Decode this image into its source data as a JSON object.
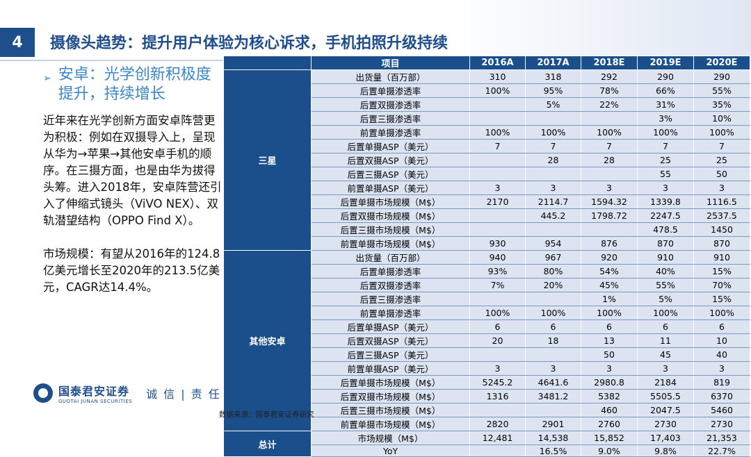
{
  "slide_number": "4",
  "title": "摄像头趋势：提升用户体验为核心诉求，手机拍照升级持续",
  "subheading": "安卓：光学创新积极度提升，持续增长",
  "paragraph1": "近年来在光学创新方面安卓阵营更为积极：例如在双摄导入上，呈现从华为→苹果→其他安卓手机的顺序。在三摄方面，也是由华为拔得头筹。进入2018年，安卓阵营还引入了伸缩式镜头（ViVO NEX）、双轨潜望结构（OPPO Find X）。",
  "paragraph2": "市场规模：有望从2016年的124.8亿美元增长至2020年的213.5亿美元，CAGR达14.4%。",
  "company_cn": "国泰君安证券",
  "company_en": "GUOTAI JUNAN SECURITIES",
  "motto": "诚 信 | 责 任 | 亲",
  "source": "数据来源：国泰君安证券研究",
  "table": {
    "headers": [
      "项目",
      "2016A",
      "2017A",
      "2018E",
      "2019E",
      "2020E"
    ],
    "groups": [
      {
        "name": "三星",
        "rows": [
          {
            "item": "出货量（百万部）",
            "values": [
              "310",
              "318",
              "292",
              "290",
              "290"
            ]
          },
          {
            "item": "后置单摄渗透率",
            "values": [
              "100%",
              "95%",
              "78%",
              "66%",
              "55%"
            ]
          },
          {
            "item": "后置双摄渗透率",
            "values": [
              "",
              "5%",
              "22%",
              "31%",
              "35%"
            ]
          },
          {
            "item": "后置三摄渗透率",
            "values": [
              "",
              "",
              "",
              "3%",
              "10%"
            ]
          },
          {
            "item": "前置单摄渗透率",
            "values": [
              "100%",
              "100%",
              "100%",
              "100%",
              "100%"
            ]
          },
          {
            "item": "后置单摄ASP（美元）",
            "values": [
              "7",
              "7",
              "7",
              "7",
              "7"
            ]
          },
          {
            "item": "后置双摄ASP（美元）",
            "values": [
              "",
              "28",
              "28",
              "25",
              "25"
            ]
          },
          {
            "item": "后置三摄ASP（美元）",
            "values": [
              "",
              "",
              "",
              "55",
              "50"
            ]
          },
          {
            "item": "前置单摄ASP（美元）",
            "values": [
              "3",
              "3",
              "3",
              "3",
              "3"
            ]
          },
          {
            "item": "后置单摄市场规模（M$）",
            "values": [
              "2170",
              "2114.7",
              "1594.32",
              "1339.8",
              "1116.5"
            ]
          },
          {
            "item": "后置双摄市场规模（M$）",
            "values": [
              "",
              "445.2",
              "1798.72",
              "2247.5",
              "2537.5"
            ]
          },
          {
            "item": "后置三摄市场规模（M$）",
            "values": [
              "",
              "",
              "",
              "478.5",
              "1450"
            ]
          },
          {
            "item": "前置单摄市场规模（M$）",
            "values": [
              "930",
              "954",
              "876",
              "870",
              "870"
            ]
          }
        ]
      },
      {
        "name": "其他安卓",
        "rows": [
          {
            "item": "出货量（百万部）",
            "values": [
              "940",
              "967",
              "920",
              "910",
              "910"
            ]
          },
          {
            "item": "后置单摄渗透率",
            "values": [
              "93%",
              "80%",
              "54%",
              "40%",
              "15%"
            ]
          },
          {
            "item": "后置双摄渗透率",
            "values": [
              "7%",
              "20%",
              "45%",
              "55%",
              "70%"
            ]
          },
          {
            "item": "后置三摄渗透率",
            "values": [
              "",
              "",
              "1%",
              "5%",
              "15%"
            ]
          },
          {
            "item": "前置单摄渗透率",
            "values": [
              "100%",
              "100%",
              "100%",
              "100%",
              "100%"
            ]
          },
          {
            "item": "后置单摄ASP（美元）",
            "values": [
              "6",
              "6",
              "6",
              "6",
              "6"
            ]
          },
          {
            "item": "后置双摄ASP（美元）",
            "values": [
              "20",
              "18",
              "13",
              "11",
              "10"
            ]
          },
          {
            "item": "后置三摄ASP（美元）",
            "values": [
              "",
              "",
              "50",
              "45",
              "40"
            ]
          },
          {
            "item": "前置单摄ASP（美元）",
            "values": [
              "3",
              "3",
              "3",
              "3",
              "3"
            ]
          },
          {
            "item": "后置单摄市场规模（M$）",
            "values": [
              "5245.2",
              "4641.6",
              "2980.8",
              "2184",
              "819"
            ]
          },
          {
            "item": "后置双摄市场规模（M$）",
            "values": [
              "1316",
              "3481.2",
              "5382",
              "5505.5",
              "6370"
            ]
          },
          {
            "item": "后置三摄市场规模（M$）",
            "values": [
              "",
              "",
              "460",
              "2047.5",
              "5460"
            ]
          },
          {
            "item": "前置单摄市场规模（M$）",
            "values": [
              "2820",
              "2901",
              "2760",
              "2730",
              "2730"
            ]
          }
        ]
      },
      {
        "name": "总计",
        "rows": [
          {
            "item": "市场规模（M$）",
            "values": [
              "12,481",
              "14,538",
              "15,852",
              "17,403",
              "21,353"
            ]
          },
          {
            "item": "YoY",
            "values": [
              "",
              "16.5%",
              "9.0%",
              "9.8%",
              "22.7%"
            ]
          }
        ]
      }
    ]
  }
}
